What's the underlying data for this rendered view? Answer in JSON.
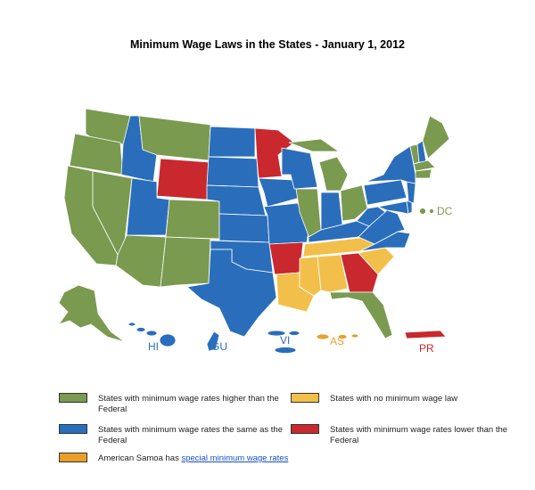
{
  "title": "Minimum Wage Laws in the States - January 1, 2012",
  "colors": {
    "higher": "#7a9a50",
    "same": "#2a6ebb",
    "none": "#f2c04a",
    "lower": "#c8282e",
    "samoa": "#e8a02a"
  },
  "territories": {
    "hi": "HI",
    "gu": "GU",
    "vi": "VI",
    "as": "AS",
    "pr": "PR",
    "dc": "DC"
  },
  "legend": {
    "higher": "States with minimum wage rates higher than the Federal",
    "same": "States with minimum wage rates the same as the Federal",
    "samoa_prefix": "American Samoa has ",
    "samoa_link": "special minimum wage rates",
    "none": "States with no minimum wage law",
    "lower": "States with minimum wage rates lower than the Federal"
  }
}
